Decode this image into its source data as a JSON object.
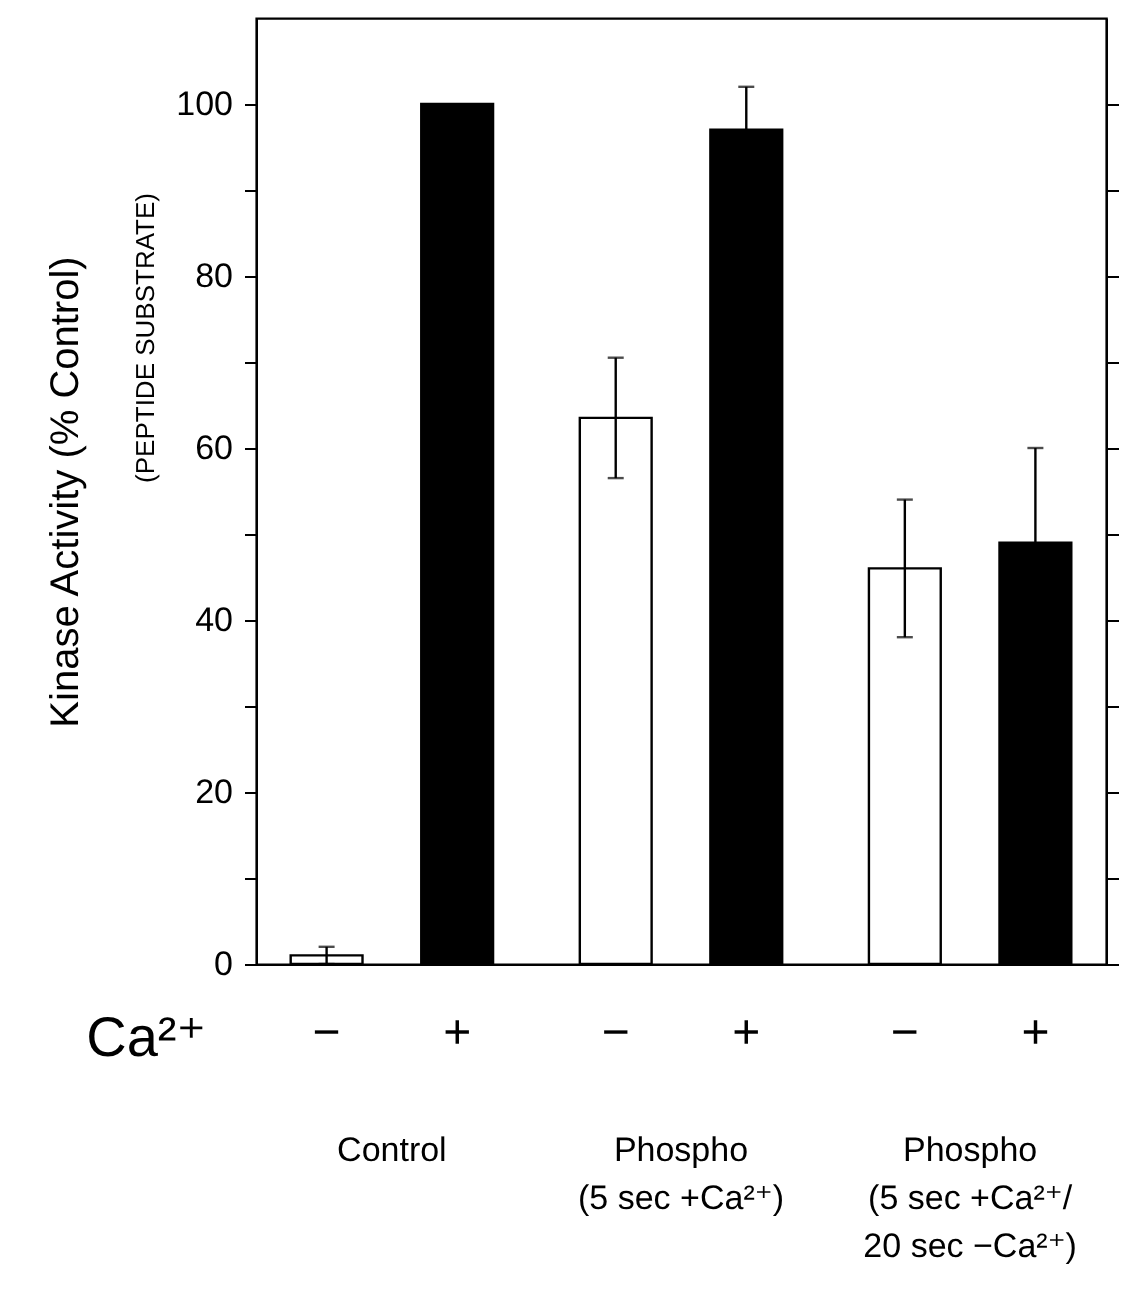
{
  "chart_data": {
    "type": "bar",
    "ylabel": "Kinase Activity (% Control)",
    "annotations": [
      "(PEPTIDE SUBSTRATE)"
    ],
    "legend_title": "Ca²⁺",
    "categories": [
      "Control",
      "Phospho (5 sec +Ca²⁺)",
      "Phospho (5 sec +Ca²⁺/ 20 sec −Ca²⁺)"
    ],
    "series": [
      {
        "name": "−",
        "color": "#ffffff",
        "values": [
          1,
          63.5,
          46
        ],
        "errors": [
          1,
          7,
          8
        ]
      },
      {
        "name": "+",
        "color": "#000000",
        "values": [
          100,
          97,
          49
        ],
        "errors": [
          null,
          5,
          11
        ]
      }
    ],
    "ylim": [
      0,
      110
    ],
    "yticks": [
      0,
      {
        "value": 10,
        "label": null
      },
      20,
      {
        "value": 30,
        "label": null
      },
      40,
      {
        "value": 50,
        "label": null
      },
      60,
      {
        "value": 70,
        "label": null
      },
      80,
      {
        "value": 90,
        "label": null
      },
      100
    ],
    "grid": false,
    "legend": false
  }
}
